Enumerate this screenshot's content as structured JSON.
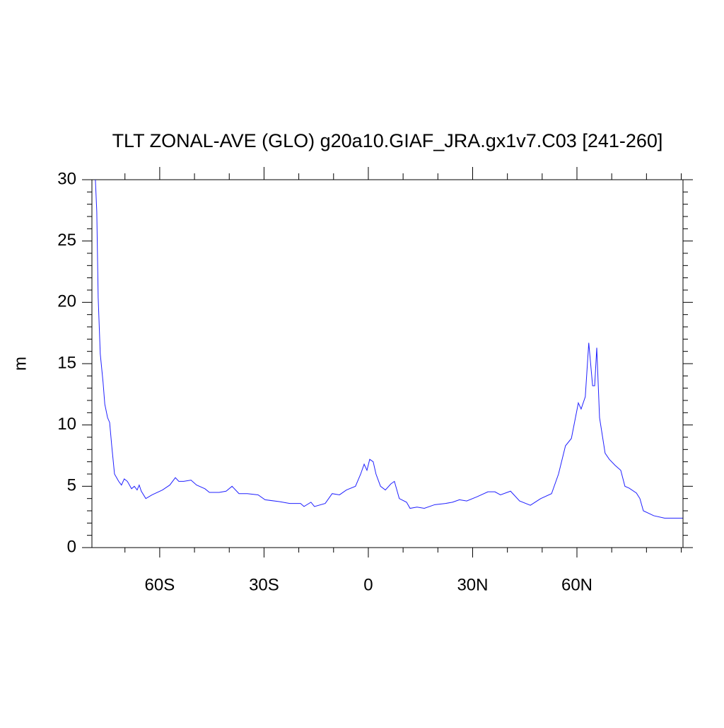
{
  "chart_data": {
    "type": "line",
    "title": "TLT ZONAL-AVE (GLO) g20a10.GIAF_JRA.gx1v7.C03 [241-260]",
    "ylabel": "m",
    "x": [
      -78.5,
      -78.1,
      -77.7,
      -77.1,
      -76.3,
      -75.8,
      -75.0,
      -74.4,
      -73.8,
      -73.0,
      -71.8,
      -71.0,
      -70.2,
      -69.3,
      -68.1,
      -67.3,
      -66.5,
      -65.9,
      -65.3,
      -64.0,
      -62.2,
      -59.2,
      -57.1,
      -55.5,
      -54.5,
      -53.1,
      -51.0,
      -49.4,
      -47.0,
      -45.7,
      -42.9,
      -40.9,
      -39.2,
      -37.2,
      -34.8,
      -31.7,
      -29.7,
      -25.6,
      -22.6,
      -19.5,
      -18.5,
      -16.5,
      -15.5,
      -12.4,
      -10.4,
      -8.3,
      -6.3,
      -3.7,
      -2.2,
      -1.2,
      -0.4,
      0.4,
      1.4,
      2.2,
      3.5,
      4.9,
      6.5,
      7.5,
      8.9,
      11.0,
      12.0,
      14.0,
      16.1,
      19.1,
      22.2,
      24.2,
      26.2,
      28.3,
      31.3,
      34.4,
      36.4,
      38.0,
      40.9,
      43.5,
      46.6,
      49.6,
      52.7,
      54.7,
      56.7,
      58.4,
      60.4,
      61.2,
      62.4,
      63.4,
      64.5,
      65.1,
      65.7,
      66.5,
      68.1,
      69.3,
      71.0,
      72.6,
      73.8,
      75.0,
      77.1,
      78.1,
      79.1,
      82.1,
      85.2,
      90.4
    ],
    "series": [
      {
        "color": "#2020ff",
        "values": [
          30,
          27.4,
          20.4,
          15.8,
          13.5,
          11.7,
          10.6,
          10.2,
          8.3,
          6.0,
          5.4,
          5.1,
          5.6,
          5.4,
          4.8,
          5.0,
          4.7,
          5.1,
          4.6,
          4.0,
          4.3,
          4.7,
          5.1,
          5.7,
          5.4,
          5.4,
          5.5,
          5.1,
          4.8,
          4.5,
          4.5,
          4.6,
          5.0,
          4.4,
          4.4,
          4.3,
          3.9,
          3.75,
          3.6,
          3.6,
          3.35,
          3.7,
          3.35,
          3.6,
          4.4,
          4.3,
          4.7,
          5.0,
          6.0,
          6.8,
          6.3,
          7.2,
          7.0,
          6.0,
          5.0,
          4.7,
          5.2,
          5.4,
          4.0,
          3.7,
          3.2,
          3.3,
          3.2,
          3.5,
          3.6,
          3.7,
          3.9,
          3.8,
          4.15,
          4.55,
          4.55,
          4.3,
          4.6,
          3.8,
          3.45,
          4.0,
          4.4,
          6.0,
          8.3,
          8.9,
          11.8,
          11.3,
          12.3,
          16.7,
          13.2,
          13.2,
          16.3,
          10.6,
          7.7,
          7.2,
          6.7,
          6.3,
          5.0,
          4.85,
          4.45,
          4.0,
          3.0,
          2.6,
          2.4,
          2.4
        ]
      }
    ],
    "xlim": [
      -79.5,
      90.5
    ],
    "xticks": [
      {
        "value": -60,
        "label": "60S"
      },
      {
        "value": -30,
        "label": "30S"
      },
      0,
      {
        "value": 30,
        "label": "30N"
      },
      {
        "value": 60,
        "label": "60N"
      }
    ],
    "ylim": [
      0,
      30
    ],
    "yticks": [
      0,
      5,
      10,
      15,
      20,
      25,
      30
    ]
  }
}
